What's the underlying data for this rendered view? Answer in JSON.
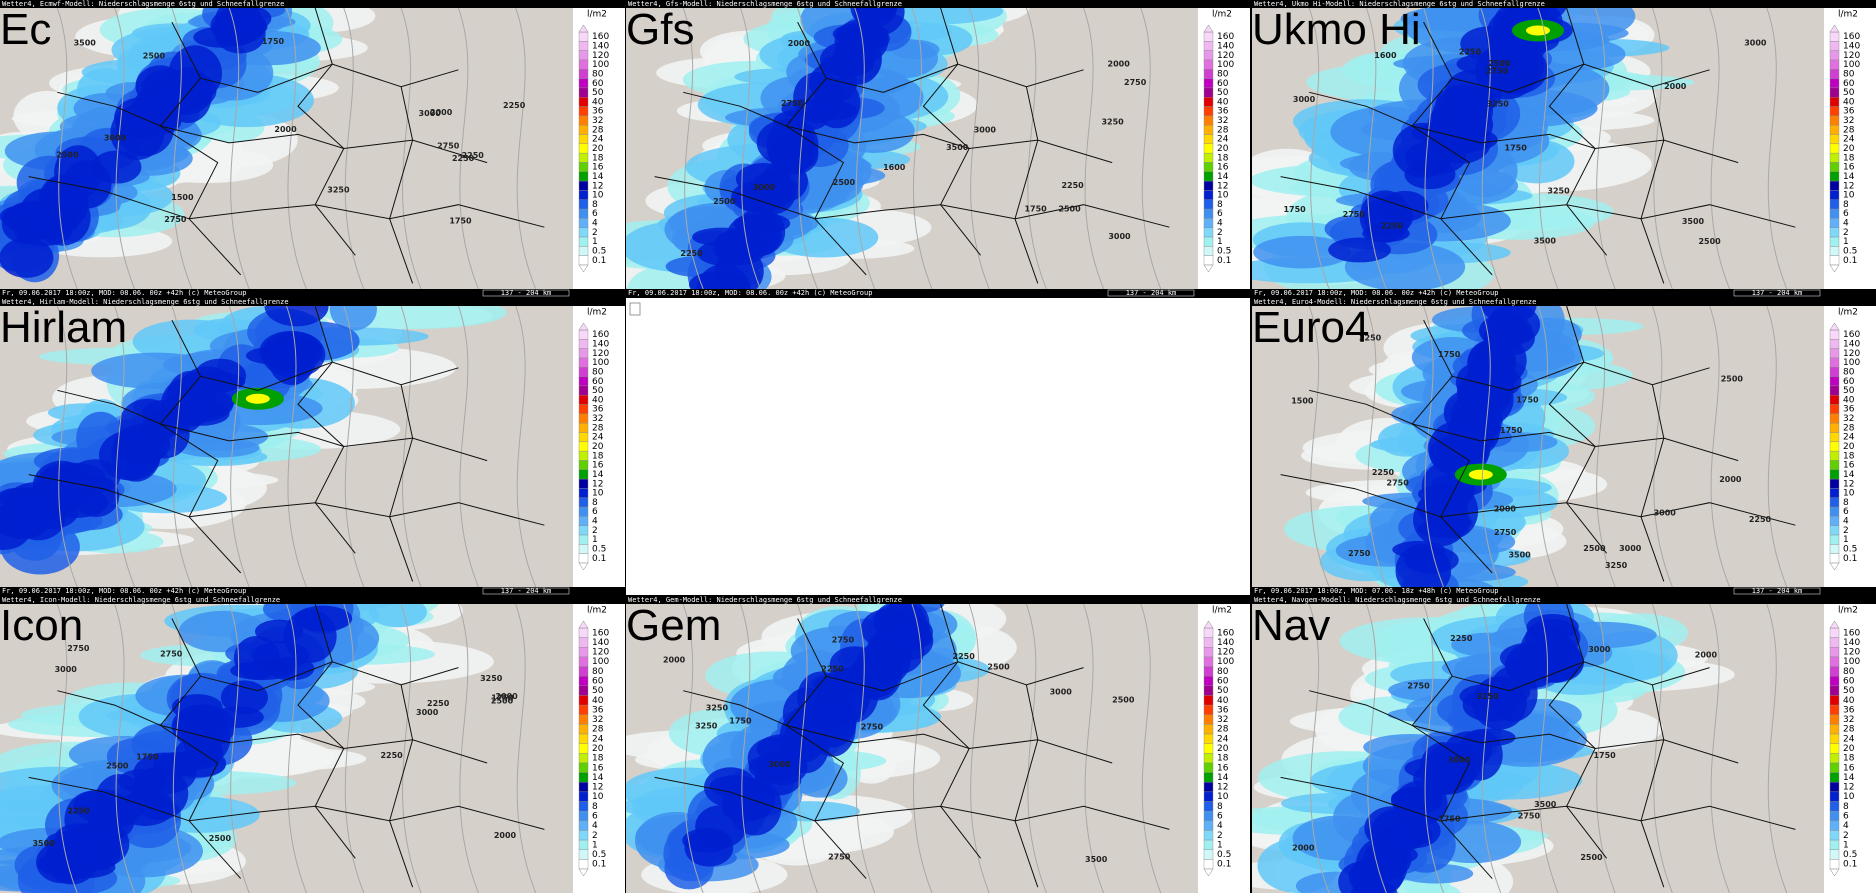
{
  "legend": {
    "title": "l/m2",
    "ticks": [
      160,
      140,
      120,
      100,
      80,
      60,
      50,
      40,
      36,
      32,
      28,
      24,
      20,
      18,
      16,
      14,
      12,
      10,
      8,
      6,
      4,
      2,
      1,
      0.5,
      0.1
    ],
    "colors": [
      "#f8d8f8",
      "#f0b8f0",
      "#e898e8",
      "#e070e0",
      "#d040d0",
      "#c000c0",
      "#a00090",
      "#e00000",
      "#ff4000",
      "#ff8000",
      "#ffb000",
      "#ffd800",
      "#ffff00",
      "#c0f000",
      "#60d000",
      "#00a000",
      "#0000a0",
      "#0020d0",
      "#2060e8",
      "#4090f0",
      "#60b0f8",
      "#80d8f8",
      "#a0f0f0",
      "#d0f8f8",
      "#ffffff"
    ]
  },
  "panels": [
    {
      "header": "Wetter4, Ecmwf-Modell: Niederschlagsmenge 6stg und Schneefallgrenze",
      "label": "Ec",
      "footer": "Fr, 09.06.2017 18:00z, MOD: 08.06. 00z +42h (c) MeteoGroup",
      "scale": "137 - 204 km",
      "contours": [
        2000,
        2250,
        1750,
        1750,
        1500,
        2000,
        2250,
        2500,
        2750,
        2750,
        3000,
        3000,
        3250,
        3500,
        2500,
        2250
      ]
    },
    {
      "header": "Wetter4, Gfs-Modell: Niederschlagsmenge 6stg und Schneefallgrenze",
      "label": "Gfs",
      "footer": "Fr, 09.06.2017 18:00z, MOD: 08.06. 00z +42h (c) MeteoGroup",
      "scale": "137 - 204 km",
      "contours": [
        1600,
        2250,
        2500,
        1750,
        2000,
        2250,
        3000,
        2750,
        3000,
        2500,
        2500,
        3250,
        3500,
        2750,
        3000,
        2000
      ]
    },
    {
      "header": "Wetter4, Ukmo Hi-Modell: Niederschlagsmenge 6stg und Schneefallgrenze",
      "label": "Ukmo Hi",
      "footer": "Fr, 09.06.2017 18:00z, MOD: 08.06. 00z +42h (c) MeteoGroup",
      "scale": "137 - 204 km",
      "contours": [
        1600,
        1750,
        2250,
        2000,
        2500,
        2250,
        2500,
        2750,
        3000,
        3250,
        3500,
        3000,
        3250,
        3500,
        2750,
        1750
      ]
    },
    {
      "header": "Wetter4, Hirlam-Modell: Niederschlagsmenge 6stg und Schneefallgrenze",
      "label": "Hirlam",
      "footer": "Fr, 09.06.2017 18:00z, MOD: 08.06. 00z +42h (c) MeteoGroup",
      "scale": "137 - 204 km",
      "contours": []
    },
    {
      "header": "Wetter4, Euro4-Modell: Niederschlagsmenge 6stg und Schneefallgrenze",
      "label": "Euro4",
      "footer": "Fr, 09.06.2017 18:00z, MOD: 07.06. 18z +48h (c) MeteoGroup",
      "scale": "137 - 204 km",
      "contours": [
        1500,
        1750,
        2000,
        2250,
        1750,
        2000,
        2500,
        2750,
        2250,
        2500,
        3000,
        3250,
        2750,
        3500,
        3000,
        3250,
        2750,
        1750
      ]
    },
    {
      "header": "Wetter4, Icon-Modell: Niederschlagsmenge 6stg und Schneefallgrenze",
      "label": "Icon",
      "contours": [
        1750,
        2000,
        2250,
        2500,
        1750,
        2000,
        2250,
        2500,
        2750,
        3000,
        3250,
        3500,
        2750,
        3000,
        2250,
        2500
      ]
    },
    {
      "header": "Wetter4, Gem-Modell: Niederschlagsmenge 6stg und Schneefallgrenze",
      "label": "Gem",
      "contours": [
        1750,
        2000,
        2500,
        2250,
        2750,
        3000,
        3250,
        2750,
        3500,
        2750,
        3250,
        2250,
        3000,
        2500
      ]
    },
    {
      "header": "Wetter4, Navgem-Modell: Niederschlagsmenge 6stg und Schneefallgrenze",
      "label": "Nav",
      "contours": [
        1750,
        2000,
        2250,
        2500,
        2750,
        3000,
        3250,
        3500,
        2750,
        3000,
        2000,
        1750
      ]
    }
  ]
}
